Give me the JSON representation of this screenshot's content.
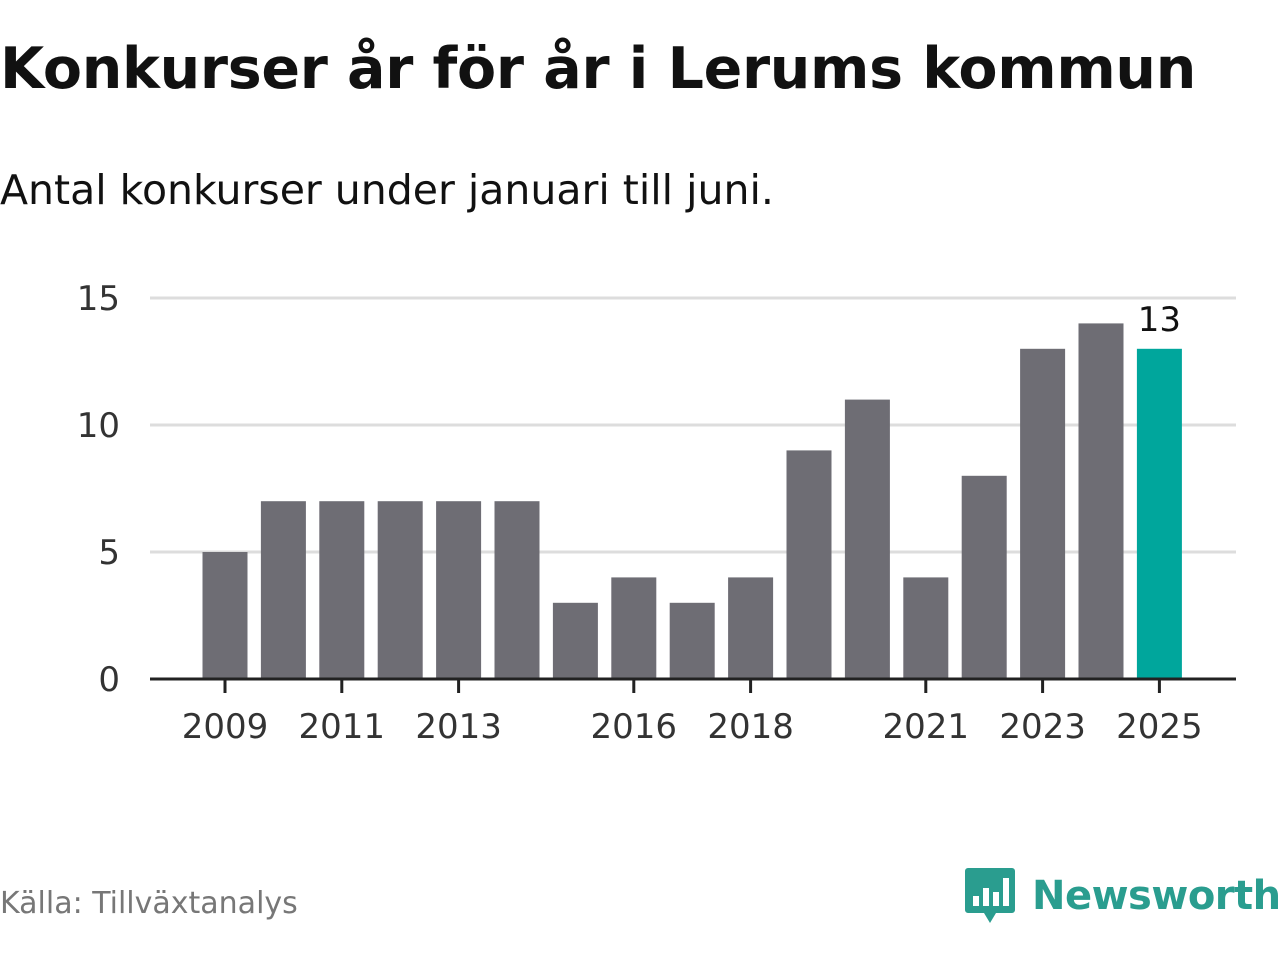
{
  "header": {
    "title": "Konkurser år för år i Lerums kommun",
    "subtitle": "Antal konkurser under januari till juni."
  },
  "footer": {
    "source": "Källa: Tillväxtanalys",
    "brand": "Newsworthy",
    "brand_icon": "newsworthy-logo-icon"
  },
  "colors": {
    "bar": "#6e6d74",
    "highlight": "#00a69c",
    "grid": "#dddddd",
    "axis": "#222222",
    "brand": "#2a9d8f"
  },
  "chart_data": {
    "type": "bar",
    "title": "Konkurser år för år i Lerums kommun",
    "subtitle": "Antal konkurser under januari till juni.",
    "xlabel": "",
    "ylabel": "",
    "categories": [
      "2009",
      "2010",
      "2011",
      "2012",
      "2013",
      "2014",
      "2015",
      "2016",
      "2017",
      "2018",
      "2019",
      "2020",
      "2021",
      "2022",
      "2023",
      "2024",
      "2025"
    ],
    "values": [
      5,
      7,
      7,
      7,
      7,
      7,
      3,
      4,
      3,
      4,
      9,
      11,
      4,
      8,
      13,
      14,
      13
    ],
    "ylim": [
      0,
      15
    ],
    "yticks": [
      0,
      5,
      10,
      15
    ],
    "xtick_labels": [
      "2009",
      "2011",
      "2013",
      "2016",
      "2018",
      "2021",
      "2023",
      "2025"
    ],
    "highlight_category": "2025",
    "highlight_value_label": "13",
    "grid": true,
    "legend": "none"
  }
}
